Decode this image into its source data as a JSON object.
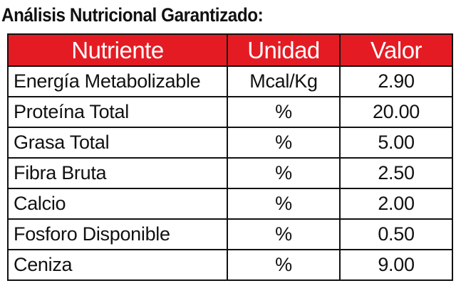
{
  "title": "Análisis Nutricional Garantizado:",
  "colors": {
    "header_bg": "#e51b24",
    "header_text": "#ffffff",
    "border": "#111111"
  },
  "table": {
    "headers": [
      "Nutriente",
      "Unidad",
      "Valor"
    ],
    "rows": [
      {
        "nutriente": "Energía Metabolizable",
        "unidad": "Mcal/Kg",
        "valor": "2.90"
      },
      {
        "nutriente": "Proteína Total",
        "unidad": "%",
        "valor": "20.00"
      },
      {
        "nutriente": "Grasa Total",
        "unidad": "%",
        "valor": "5.00"
      },
      {
        "nutriente": "Fibra Bruta",
        "unidad": "%",
        "valor": "2.50"
      },
      {
        "nutriente": "Calcio",
        "unidad": "%",
        "valor": "2.00"
      },
      {
        "nutriente": "Fosforo Disponible",
        "unidad": "%",
        "valor": "0.50"
      },
      {
        "nutriente": "Ceniza",
        "unidad": "%",
        "valor": "9.00"
      }
    ]
  }
}
